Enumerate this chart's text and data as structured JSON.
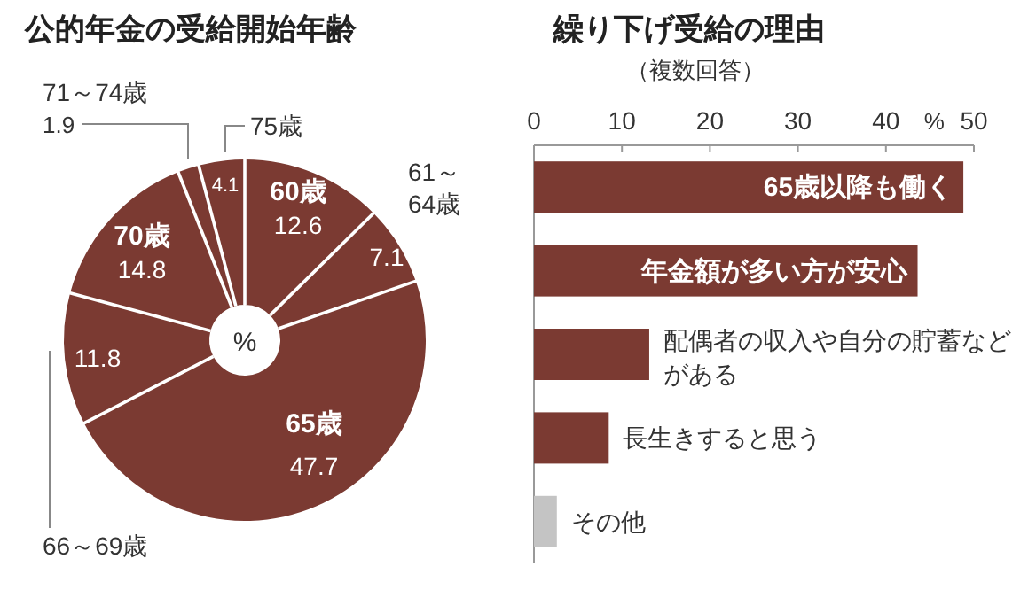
{
  "chart_data": [
    {
      "type": "donut",
      "title": "公的年金の受給開始年齢",
      "categories": [
        "60歳",
        "61～64歳",
        "65歳",
        "66～69歳",
        "70歳",
        "71～74歳",
        "75歳"
      ],
      "values": [
        12.6,
        7.1,
        47.7,
        11.8,
        14.8,
        1.9,
        4.1
      ],
      "colors": [
        "#7b3a32",
        "#7b3a32",
        "#7b3a32",
        "#7b3a32",
        "#7b3a32",
        "#7b3a32",
        "#7b3a32"
      ],
      "data_labels": true,
      "annotations": [
        "%"
      ]
    },
    {
      "type": "bar",
      "title": "繰り下げ受給の理由",
      "subtitle": "（複数回答）",
      "orientation": "horizontal",
      "categories": [
        "65歳以降も働く",
        "年金額が多い方が安心",
        "配偶者の収入や自分の貯蓄などがある",
        "長生きすると思う",
        "その他"
      ],
      "values": [
        48.8,
        43.6,
        13.1,
        8.5,
        2.6
      ],
      "colors": [
        "#7b3a32",
        "#7b3a32",
        "#7b3a32",
        "#7b3a32",
        "#c4c4c4"
      ],
      "xlabel": "%",
      "xlim": [
        0,
        50
      ],
      "xticks": [
        0,
        10,
        20,
        30,
        40,
        50
      ],
      "grid": false
    }
  ]
}
